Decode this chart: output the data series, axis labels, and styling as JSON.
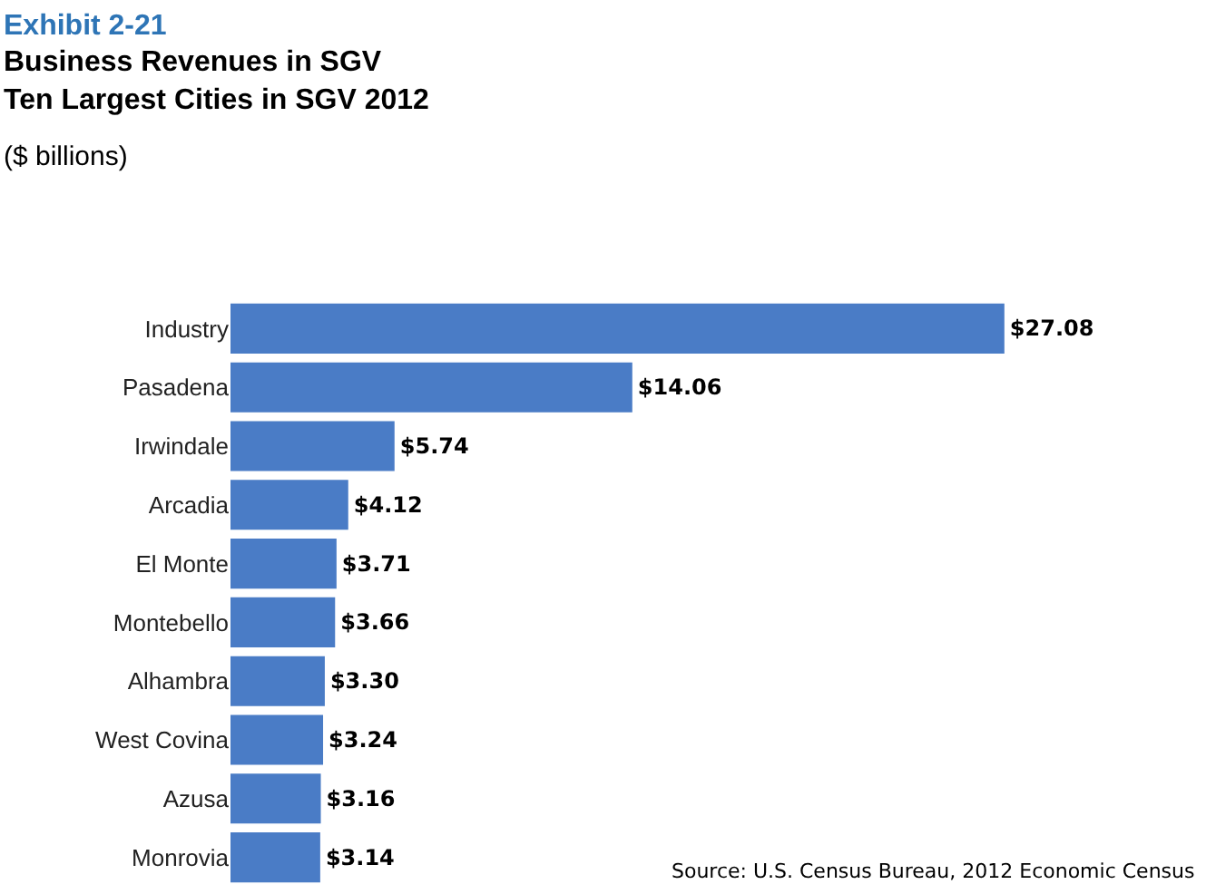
{
  "chart_data": {
    "type": "bar",
    "orientation": "horizontal",
    "title": "Exhibit 2-21",
    "subtitle": "Business Revenues in SGV\nTen Largest Cities in SGV 2012",
    "xlabel": "($ billions)",
    "categories": [
      "Industry",
      "Pasadena",
      "Irwindale",
      "Arcadia",
      "El Monte",
      "Montebello",
      "Alhambra",
      "West Covina",
      "Azusa",
      "Monrovia"
    ],
    "values": [
      27.08,
      14.06,
      5.74,
      4.12,
      3.71,
      3.66,
      3.3,
      3.24,
      3.16,
      3.14
    ],
    "value_labels": [
      "$27.08",
      "$14.06",
      "$5.74",
      "$4.12",
      "$3.71",
      "$3.66",
      "$3.30",
      "$3.24",
      "$3.16",
      "$3.14"
    ],
    "color": "#4a7cc6",
    "annotations": [
      "Source: U.S. Census Bureau, 2012 Economic Census"
    ]
  }
}
